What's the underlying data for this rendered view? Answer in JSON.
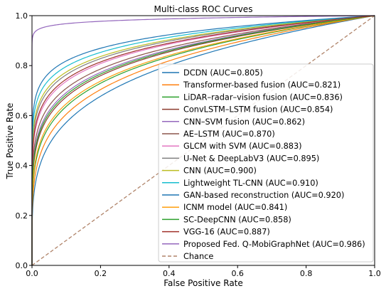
{
  "chart_data": {
    "type": "line",
    "title": "Multi-class ROC Curves",
    "xlabel": "False Positive Rate",
    "ylabel": "True Positive Rate",
    "xlim": [
      0.0,
      1.0
    ],
    "ylim": [
      0.0,
      1.0
    ],
    "xticks": [
      "0.0",
      "0.2",
      "0.4",
      "0.6",
      "0.8",
      "1.0"
    ],
    "yticks": [
      "0.0",
      "0.2",
      "0.4",
      "0.6",
      "0.8",
      "1.0"
    ],
    "grid": false,
    "legend_position": "lower-right",
    "series": [
      {
        "name": "DCDN (AUC=0.805)",
        "auc": 0.805,
        "color": "#1f77b4"
      },
      {
        "name": "Transformer-based fusion (AUC=0.821)",
        "auc": 0.821,
        "color": "#ff7f0e"
      },
      {
        "name": "LiDAR–radar–vision fusion (AUC=0.836)",
        "auc": 0.836,
        "color": "#2ca02c"
      },
      {
        "name": "ConvLSTM–LSTM fusion (AUC=0.854)",
        "auc": 0.854,
        "color": "#8c3a2e"
      },
      {
        "name": "CNN–SVM fusion (AUC=0.862)",
        "auc": 0.862,
        "color": "#9467bd"
      },
      {
        "name": "AE–LSTM (AUC=0.870)",
        "auc": 0.87,
        "color": "#8c564b"
      },
      {
        "name": "GLCM with SVM (AUC=0.883)",
        "auc": 0.883,
        "color": "#e377c2"
      },
      {
        "name": "U-Net & DeepLabV3 (AUC=0.895)",
        "auc": 0.895,
        "color": "#7f7f7f"
      },
      {
        "name": "CNN (AUC=0.900)",
        "auc": 0.9,
        "color": "#bcbd22"
      },
      {
        "name": "Lightweight TL-CNN (AUC=0.910)",
        "auc": 0.91,
        "color": "#17becf"
      },
      {
        "name": "GAN-based reconstruction (AUC=0.920)",
        "auc": 0.92,
        "color": "#1f77b4"
      },
      {
        "name": "ICNM model (AUC=0.841)",
        "auc": 0.841,
        "color": "#ff9f0e"
      },
      {
        "name": "SC-DeepCNN (AUC=0.858)",
        "auc": 0.858,
        "color": "#2ca02c"
      },
      {
        "name": "VGG-16 (AUC=0.887)",
        "auc": 0.887,
        "color": "#a0302a"
      },
      {
        "name": "Proposed Fed. Q-MobiGraphNet (AUC=0.986)",
        "auc": 0.986,
        "color": "#9467bd"
      }
    ],
    "chance": {
      "name": "Chance",
      "color": "#b0846a",
      "points": [
        [
          0,
          0
        ],
        [
          1,
          1
        ]
      ]
    }
  }
}
